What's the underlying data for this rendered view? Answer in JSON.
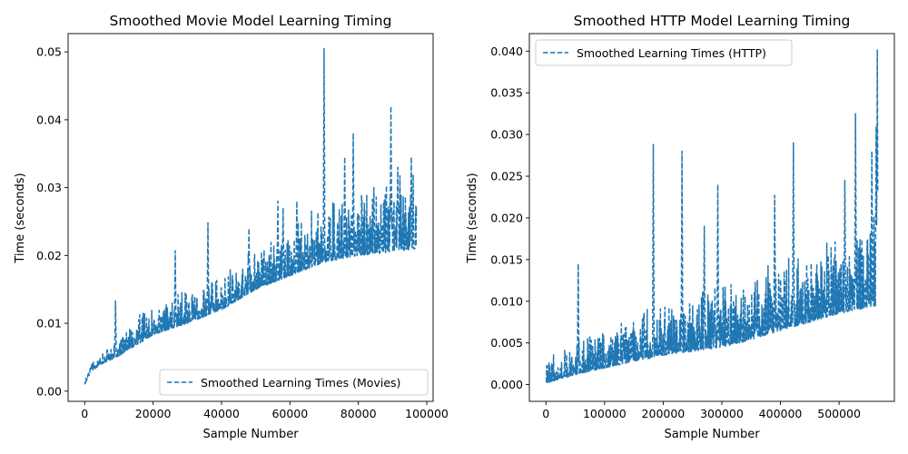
{
  "chart_data": [
    {
      "type": "line",
      "title": "Smoothed Movie Model Learning Timing",
      "xlabel": "Sample Number",
      "ylabel": "Time (seconds)",
      "xlim": [
        -4850,
        101850
      ],
      "ylim": [
        -0.0015,
        0.0527
      ],
      "xticks": [
        0,
        20000,
        40000,
        60000,
        80000,
        100000
      ],
      "xtick_labels": [
        "0",
        "20000",
        "40000",
        "60000",
        "80000",
        "100000"
      ],
      "yticks": [
        0.0,
        0.01,
        0.02,
        0.03,
        0.04,
        0.05
      ],
      "ytick_labels": [
        "0.00",
        "0.01",
        "0.02",
        "0.03",
        "0.04",
        "0.05"
      ],
      "legend": "lower-right",
      "series": [
        {
          "name": "Smoothed Learning Times (Movies)",
          "color": "#1f77b4",
          "style": "dashed",
          "x_max": 97000,
          "base": [
            [
              0,
              0.001
            ],
            [
              2000,
              0.003
            ],
            [
              5000,
              0.004
            ],
            [
              10000,
              0.0052
            ],
            [
              20000,
              0.0083
            ],
            [
              30000,
              0.01
            ],
            [
              40000,
              0.012
            ],
            [
              50000,
              0.015
            ],
            [
              60000,
              0.017
            ],
            [
              70000,
              0.019
            ],
            [
              80000,
              0.02
            ],
            [
              90000,
              0.0205
            ],
            [
              97000,
              0.021
            ]
          ],
          "noise": [
            [
              0,
              0.0005
            ],
            [
              2000,
              0.0015
            ],
            [
              5000,
              0.0018
            ],
            [
              10000,
              0.003
            ],
            [
              20000,
              0.0045
            ],
            [
              30000,
              0.005
            ],
            [
              40000,
              0.005
            ],
            [
              50000,
              0.006
            ],
            [
              60000,
              0.007
            ],
            [
              70000,
              0.008
            ],
            [
              80000,
              0.009
            ],
            [
              90000,
              0.011
            ],
            [
              97000,
              0.01
            ]
          ],
          "peaks": [
            [
              9000,
              0.0133
            ],
            [
              26500,
              0.0207
            ],
            [
              36000,
              0.0248
            ],
            [
              48000,
              0.024
            ],
            [
              56500,
              0.028
            ],
            [
              58000,
              0.027
            ],
            [
              62000,
              0.028
            ],
            [
              70000,
              0.0505
            ],
            [
              76000,
              0.0345
            ],
            [
              78500,
              0.038
            ],
            [
              84500,
              0.03
            ],
            [
              89500,
              0.042
            ],
            [
              95500,
              0.0345
            ],
            [
              91500,
              0.033
            ]
          ]
        }
      ]
    },
    {
      "type": "line",
      "title": "Smoothed HTTP Model Learning Timing",
      "xlabel": "Sample Number",
      "ylabel": "Time (seconds)",
      "xlim": [
        -28300,
        594300
      ],
      "ylim": [
        -0.002,
        0.0421
      ],
      "xticks": [
        0,
        100000,
        200000,
        300000,
        400000,
        500000
      ],
      "xtick_labels": [
        "0",
        "100000",
        "200000",
        "300000",
        "400000",
        "500000"
      ],
      "yticks": [
        0.0,
        0.005,
        0.01,
        0.015,
        0.02,
        0.025,
        0.03,
        0.035,
        0.04
      ],
      "ytick_labels": [
        "0.000",
        "0.005",
        "0.010",
        "0.015",
        "0.020",
        "0.025",
        "0.030",
        "0.035",
        "0.040"
      ],
      "legend": "upper-left",
      "series": [
        {
          "name": "Smoothed Learning Times (HTTP)",
          "color": "#1f77b4",
          "style": "dashed",
          "x_max": 566000,
          "base": [
            [
              0,
              0.0002
            ],
            [
              50000,
              0.0012
            ],
            [
              100000,
              0.002
            ],
            [
              200000,
              0.0035
            ],
            [
              300000,
              0.0045
            ],
            [
              330000,
              0.005
            ],
            [
              400000,
              0.0065
            ],
            [
              500000,
              0.0085
            ],
            [
              566000,
              0.0095
            ]
          ],
          "noise": [
            [
              0,
              0.0025
            ],
            [
              50000,
              0.0035
            ],
            [
              100000,
              0.0045
            ],
            [
              200000,
              0.006
            ],
            [
              300000,
              0.007
            ],
            [
              330000,
              0.0065
            ],
            [
              400000,
              0.008
            ],
            [
              500000,
              0.01
            ],
            [
              566000,
              0.011
            ]
          ],
          "peaks": [
            [
              55000,
              0.0145
            ],
            [
              183000,
              0.0288
            ],
            [
              232000,
              0.028
            ],
            [
              293000,
              0.024
            ],
            [
              270000,
              0.019
            ],
            [
              390000,
              0.0227
            ],
            [
              422000,
              0.029
            ],
            [
              510000,
              0.0245
            ],
            [
              528000,
              0.0325
            ],
            [
              556000,
              0.028
            ],
            [
              563000,
              0.031
            ],
            [
              565000,
              0.0402
            ]
          ]
        }
      ]
    }
  ]
}
